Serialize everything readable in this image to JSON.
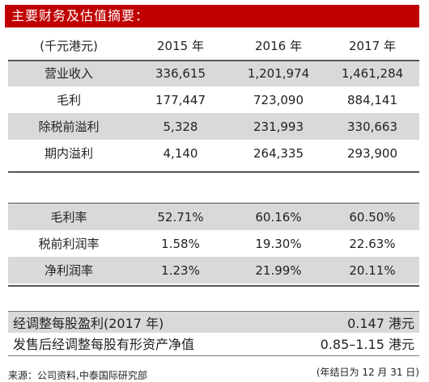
{
  "title": "主要财务及估值摘要：",
  "table1": {
    "header": [
      "(千元港元)",
      "2015 年",
      "2016 年",
      "2017 年"
    ],
    "rows": [
      [
        "营业收入",
        "336,615",
        "1,201,974",
        "1,461,284"
      ],
      [
        "毛利",
        "177,447",
        "723,090",
        "884,141"
      ],
      [
        "除税前溢利",
        "5,328",
        "231,993",
        "330,663"
      ],
      [
        "期内溢利",
        "4,140",
        "264,335",
        "293,900"
      ]
    ]
  },
  "table2": {
    "rows": [
      [
        "毛利率",
        "52.71%",
        "60.16%",
        "60.50%"
      ],
      [
        "税前利润率",
        "1.58%",
        "19.30%",
        "22.63%"
      ],
      [
        "净利润率",
        "1.23%",
        "21.99%",
        "20.11%"
      ]
    ]
  },
  "valuation": [
    {
      "label": "经调整每股盈利(2017 年)",
      "value": "0.147 港元"
    },
    {
      "label": "发售后经调整每股有形资产净值",
      "value": "0.85–1.15 港元"
    }
  ],
  "source": "来源：公司资料,中泰国际研究部",
  "fiscal_note": "(年结日为 12 月 31 日)"
}
